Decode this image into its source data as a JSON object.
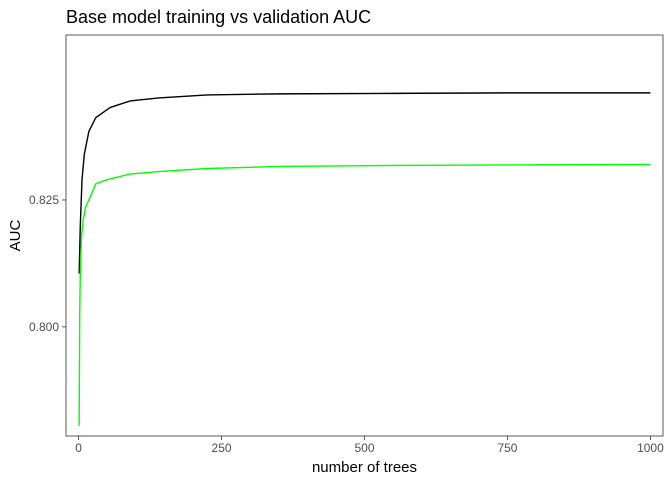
{
  "chart_data": {
    "type": "line",
    "title": "Base model training vs validation AUC",
    "xlabel": "number of trees",
    "ylabel": "AUC",
    "xlim": [
      -22,
      1022
    ],
    "ylim": [
      0.7785,
      0.8575
    ],
    "xticks": [
      0,
      250,
      500,
      750,
      1000
    ],
    "xtick_labels": [
      "0",
      "250",
      "500",
      "750",
      "1000"
    ],
    "yticks": [
      0.8,
      0.825
    ],
    "ytick_labels": [
      "0.800",
      "0.825"
    ],
    "grid": false,
    "legend": "none",
    "series": [
      {
        "color": "#000000",
        "x": [
          1,
          3,
          6,
          10,
          18,
          30,
          55,
          90,
          140,
          225,
          350,
          550,
          750,
          1000
        ],
        "y": [
          0.8105,
          0.82,
          0.829,
          0.834,
          0.8385,
          0.8412,
          0.8432,
          0.8445,
          0.8451,
          0.8457,
          0.8459,
          0.846,
          0.8461,
          0.8461
        ]
      },
      {
        "color": "#00ff00",
        "x": [
          1,
          2,
          3,
          5,
          8,
          12,
          20,
          30,
          50,
          90,
          140,
          225,
          350,
          550,
          750,
          1000
        ],
        "y": [
          0.7805,
          0.8025,
          0.8105,
          0.8175,
          0.821,
          0.8235,
          0.8255,
          0.8282,
          0.829,
          0.8301,
          0.8306,
          0.8312,
          0.8316,
          0.8318,
          0.8319,
          0.832
        ]
      }
    ]
  }
}
